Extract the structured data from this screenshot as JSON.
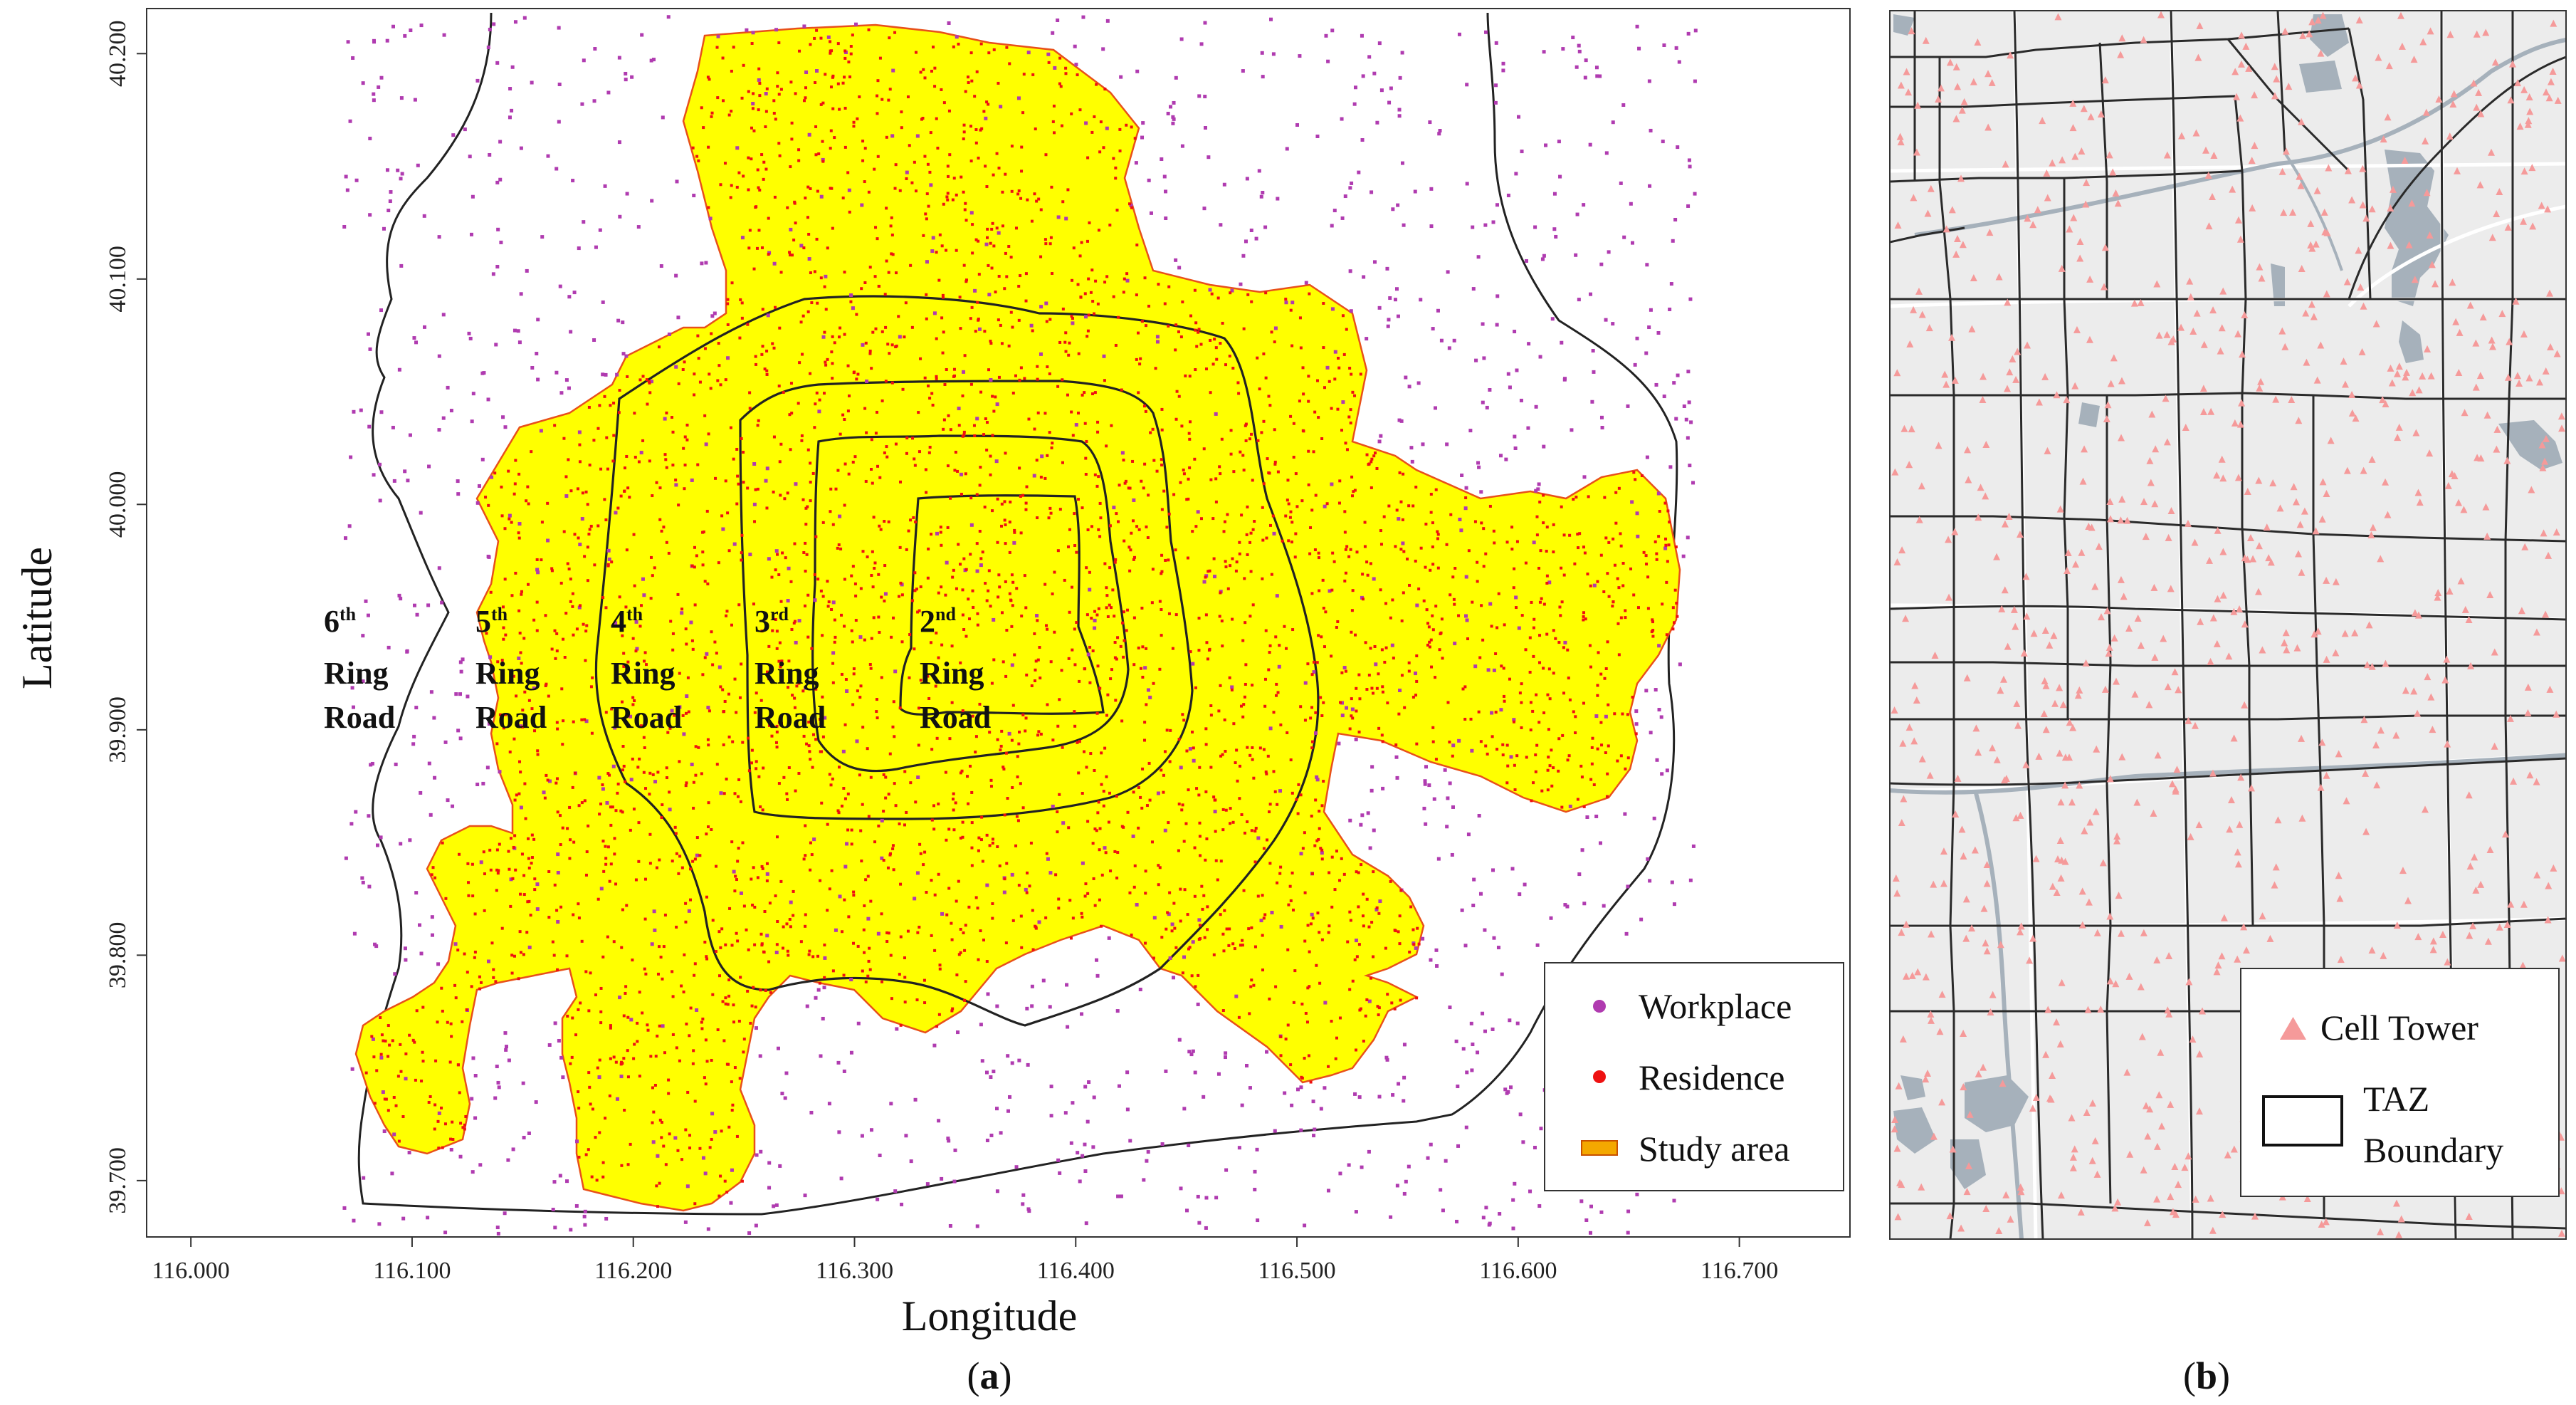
{
  "panel_a": {
    "label_prefix": "(",
    "label_letter": "a",
    "label_suffix": ")",
    "xlabel": "Longitude",
    "ylabel": "Latitude",
    "x_ticks": [
      "116.000",
      "116.100",
      "116.200",
      "116.300",
      "116.400",
      "116.500",
      "116.600",
      "116.700"
    ],
    "y_ticks": [
      "40.200",
      "40.100",
      "40.000",
      "39.900",
      "39.800",
      "39.700"
    ],
    "ring_roads": [
      {
        "ord": "6",
        "sup": "th",
        "line1": "Ring",
        "line2": "Road"
      },
      {
        "ord": "5",
        "sup": "th",
        "line1": "Ring",
        "line2": "Road"
      },
      {
        "ord": "4",
        "sup": "th",
        "line1": "Ring",
        "line2": "Road"
      },
      {
        "ord": "3",
        "sup": "rd",
        "line1": "Ring",
        "line2": "Road"
      },
      {
        "ord": "2",
        "sup": "nd",
        "line1": "Ring",
        "line2": "Road"
      }
    ],
    "legend": [
      {
        "label": "Workplace",
        "color": "#b03bb0",
        "marker": "dot"
      },
      {
        "label": "Residence",
        "color": "#ee1111",
        "marker": "dot"
      },
      {
        "label": "Study area",
        "color": "#f4a800",
        "marker": "rect"
      }
    ],
    "colors": {
      "study_area": "#ffff00",
      "study_area_edge": "#e8501a",
      "workplace": "#b03bb0",
      "residence": "#ee1111",
      "ring": "#222222"
    }
  },
  "panel_b": {
    "label_prefix": "(",
    "label_letter": "b",
    "label_suffix": ")",
    "legend": [
      {
        "label": "Cell Tower",
        "color": "#f59a9a",
        "marker": "triangle"
      },
      {
        "label": "TAZ",
        "label2": "Boundary",
        "color": "#111111",
        "marker": "box"
      }
    ],
    "colors": {
      "background": "#ececec",
      "water": "#a6b1bb",
      "road": "#ffffff",
      "taz": "#2a2a2a",
      "tower": "#f59a9a"
    }
  },
  "chart_data": {
    "type": "scatter",
    "xlabel": "Longitude",
    "ylabel": "Latitude",
    "xlim": [
      115.98,
      116.75
    ],
    "ylim": [
      39.675,
      40.22
    ],
    "x_ticks": [
      116.0,
      116.1,
      116.2,
      116.3,
      116.4,
      116.5,
      116.6,
      116.7
    ],
    "y_ticks": [
      39.7,
      39.8,
      39.9,
      40.0,
      40.1,
      40.2
    ],
    "series": [
      {
        "name": "Workplace"
      },
      {
        "name": "Residence"
      }
    ],
    "legend_position": "bottom-right"
  }
}
